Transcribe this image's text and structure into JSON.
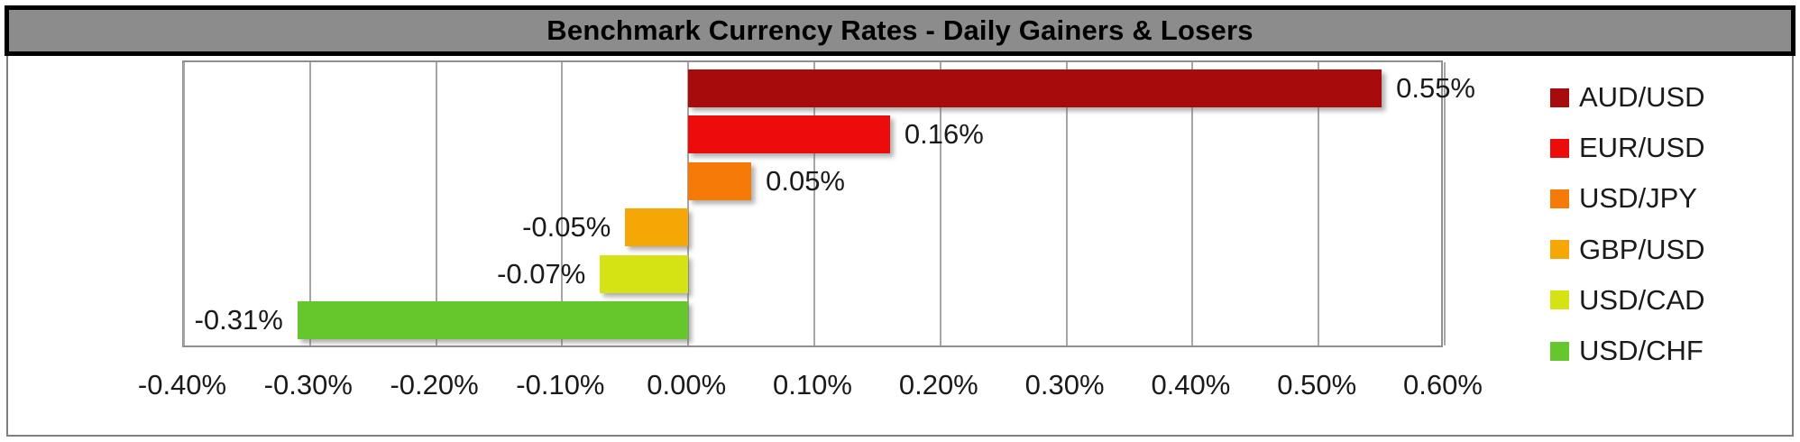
{
  "title": {
    "text": "Benchmark Currency Rates - Daily Gainers & Losers"
  },
  "chart_data": {
    "type": "bar",
    "orientation": "horizontal",
    "title": "Benchmark Currency Rates - Daily Gainers & Losers",
    "categories": [
      "AUD/USD",
      "EUR/USD",
      "USD/JPY",
      "GBP/USD",
      "USD/CAD",
      "USD/CHF"
    ],
    "values": [
      0.55,
      0.16,
      0.05,
      -0.05,
      -0.07,
      -0.31
    ],
    "value_labels": [
      "0.55%",
      "0.16%",
      "0.05%",
      "-0.05%",
      "-0.07%",
      "-0.31%"
    ],
    "bar_colors": [
      "#A80B0B",
      "#EC0C0C",
      "#F57A08",
      "#F5A805",
      "#D5E214",
      "#66C72D"
    ],
    "unit": "percent",
    "xlabel": "",
    "ylabel": "",
    "x_axis": {
      "min": -0.4,
      "max": 0.6,
      "tick_step": 0.1,
      "tick_values": [
        -0.4,
        -0.3,
        -0.2,
        -0.1,
        0.0,
        0.1,
        0.2,
        0.3,
        0.4,
        0.5,
        0.6
      ],
      "tick_labels": [
        "-0.40%",
        "-0.30%",
        "-0.20%",
        "-0.10%",
        "0.00%",
        "0.10%",
        "0.20%",
        "0.30%",
        "0.40%",
        "0.50%",
        "0.60%"
      ]
    },
    "grid": true,
    "legend": {
      "position": "right",
      "entries": [
        "AUD/USD",
        "EUR/USD",
        "USD/JPY",
        "GBP/USD",
        "USD/CAD",
        "USD/CHF"
      ]
    }
  },
  "colors": {
    "title_bg": "#8C8C8C",
    "title_text": "#000000",
    "title_border": "#000000",
    "gridline": "#A6A6A6",
    "plot_border": "#8F8F8F",
    "chart_border": "#7F7F7F",
    "label_text": "#1A1A1A",
    "background": "#FFFFFF"
  }
}
